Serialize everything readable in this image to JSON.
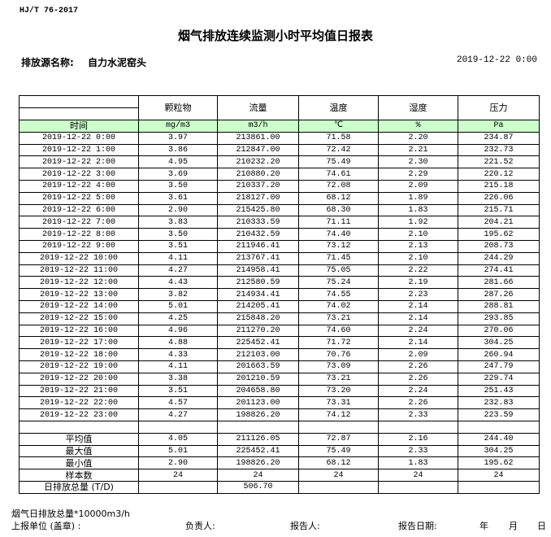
{
  "standard": "HJ/T  76-2017",
  "title": "烟气排放连续监测小时平均值日报表",
  "source_label": "排放源名称:",
  "source_value": "自力水泥窑头",
  "report_datetime": "2019-12-22 0:00",
  "table": {
    "columns": [
      "颗粒物",
      "流量",
      "温度",
      "湿度",
      "压力"
    ],
    "time_header": "时间",
    "units": [
      "mg/m3",
      "m3/h",
      "℃",
      "%",
      "Pa"
    ],
    "header_bg": "#ccffcc",
    "rows": [
      [
        "2019-12-22 0:00",
        "3.97",
        "213861.00",
        "71.58",
        "2.20",
        "234.87"
      ],
      [
        "2019-12-22 1:00",
        "3.86",
        "212847.00",
        "72.42",
        "2.21",
        "232.73"
      ],
      [
        "2019-12-22 2:00",
        "4.95",
        "210232.20",
        "75.49",
        "2.30",
        "221.52"
      ],
      [
        "2019-12-22 3:00",
        "3.69",
        "210880.20",
        "74.61",
        "2.29",
        "220.12"
      ],
      [
        "2019-12-22 4:00",
        "3.50",
        "210337.20",
        "72.08",
        "2.09",
        "215.18"
      ],
      [
        "2019-12-22 5:00",
        "3.61",
        "218127.00",
        "68.12",
        "1.89",
        "226.06"
      ],
      [
        "2019-12-22 6:00",
        "2.90",
        "215425.80",
        "68.30",
        "1.83",
        "215.71"
      ],
      [
        "2019-12-22 7:00",
        "3.83",
        "210333.59",
        "71.11",
        "1.92",
        "204.21"
      ],
      [
        "2019-12-22 8:00",
        "3.50",
        "210432.59",
        "74.40",
        "2.10",
        "195.62"
      ],
      [
        "2019-12-22 9:00",
        "3.51",
        "211946.41",
        "73.12",
        "2.13",
        "208.73"
      ],
      [
        "2019-12-22 10:00",
        "4.11",
        "213767.41",
        "71.45",
        "2.10",
        "244.29"
      ],
      [
        "2019-12-22 11:00",
        "4.27",
        "214958.41",
        "75.05",
        "2.22",
        "274.41"
      ],
      [
        "2019-12-22 12:00",
        "4.43",
        "212580.59",
        "75.24",
        "2.19",
        "281.66"
      ],
      [
        "2019-12-22 13:00",
        "3.82",
        "214934.41",
        "74.55",
        "2.23",
        "287.26"
      ],
      [
        "2019-12-22 14:00",
        "5.01",
        "214205.41",
        "74.02",
        "2.14",
        "288.81"
      ],
      [
        "2019-12-22 15:00",
        "4.25",
        "215848.20",
        "73.21",
        "2.14",
        "293.85"
      ],
      [
        "2019-12-22 16:00",
        "4.96",
        "211270.20",
        "74.60",
        "2.24",
        "270.06"
      ],
      [
        "2019-12-22 17:00",
        "4.88",
        "225452.41",
        "71.72",
        "2.14",
        "304.25"
      ],
      [
        "2019-12-22 18:00",
        "4.33",
        "212103.00",
        "70.76",
        "2.09",
        "260.94"
      ],
      [
        "2019-12-22 19:00",
        "4.11",
        "201663.59",
        "73.09",
        "2.26",
        "247.79"
      ],
      [
        "2019-12-22 20:00",
        "3.38",
        "201210.59",
        "73.21",
        "2.26",
        "229.74"
      ],
      [
        "2019-12-22 21:00",
        "3.51",
        "204658.80",
        "73.20",
        "2.24",
        "251.43"
      ],
      [
        "2019-12-22 22:00",
        "4.57",
        "201123.00",
        "73.31",
        "2.26",
        "232.83"
      ],
      [
        "2019-12-22 23:00",
        "4.27",
        "198826.20",
        "74.12",
        "2.33",
        "223.59"
      ]
    ],
    "summary": [
      [
        "平均值",
        "4.05",
        "211126.05",
        "72.87",
        "2.16",
        "244.40"
      ],
      [
        "最大值",
        "5.01",
        "225452.41",
        "75.49",
        "2.33",
        "304.25"
      ],
      [
        "最小值",
        "2.90",
        "198826.20",
        "68.12",
        "1.83",
        "195.62"
      ],
      [
        "样本数",
        "24",
        "24",
        "24",
        "24",
        "24"
      ],
      [
        "日排放总量 (T/D)",
        "",
        "506.70",
        "",
        "",
        ""
      ]
    ]
  },
  "footer": {
    "note": "烟气日排放总量*10000m3/h",
    "unit_label": "上报单位 (盖章) :",
    "manager_label": "负责人:",
    "reporter_label": "报告人:",
    "date_label": "报告日期:",
    "year": "年",
    "month": "月",
    "day": "日"
  }
}
